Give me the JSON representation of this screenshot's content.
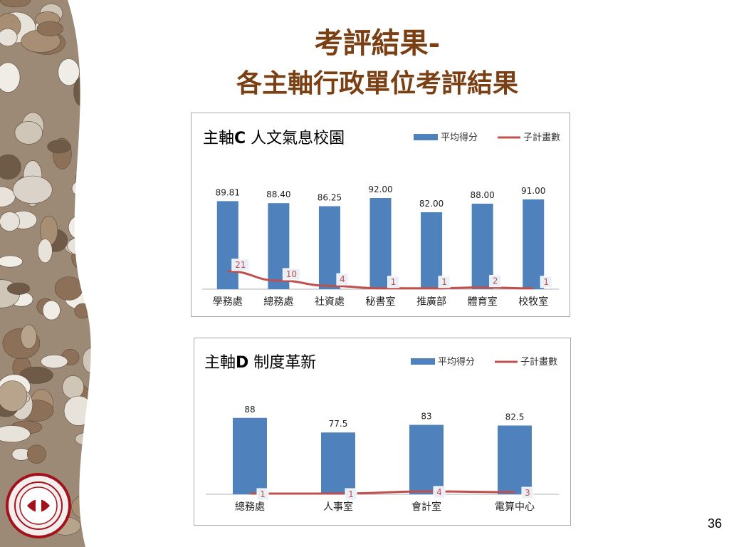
{
  "slide": {
    "title_line1": "考評結果-",
    "title_line2": "各主軸行政單位考評結果",
    "page_number": "36"
  },
  "legend": {
    "bar_label": "平均得分",
    "line_label": "子計畫數"
  },
  "colors": {
    "bar": "#4f81bd",
    "line": "#c0504d",
    "title": "#7a3f12"
  },
  "chart_data": [
    {
      "type": "bar",
      "title": "主軸C 人文氣息校園",
      "title_bold_part": "C",
      "categories": [
        "學務處",
        "總務處",
        "社資處",
        "秘書室",
        "推廣部",
        "體育室",
        "校牧室"
      ],
      "series": [
        {
          "name": "平均得分",
          "type": "bar",
          "values": [
            89.81,
            88.4,
            86.25,
            92.0,
            82.0,
            88.0,
            91.0
          ],
          "labels": [
            "89.81",
            "88.40",
            "86.25",
            "92.00",
            "82.00",
            "88.00",
            "91.00"
          ]
        },
        {
          "name": "子計畫數",
          "type": "line",
          "values": [
            21,
            10,
            4,
            1,
            1,
            2,
            1
          ]
        }
      ],
      "legend_position": "top-right",
      "grid": false
    },
    {
      "type": "bar",
      "title": "主軸D 制度革新",
      "title_bold_part": "D",
      "categories": [
        "總務處",
        "人事室",
        "會計室",
        "電算中心"
      ],
      "series": [
        {
          "name": "平均得分",
          "type": "bar",
          "values": [
            88,
            77.5,
            83,
            82.5
          ],
          "labels": [
            "88",
            "77.5",
            "83",
            "82.5"
          ]
        },
        {
          "name": "子計畫數",
          "type": "line",
          "values": [
            1,
            1,
            4,
            3
          ]
        }
      ],
      "legend_position": "top-right",
      "grid": false
    }
  ]
}
